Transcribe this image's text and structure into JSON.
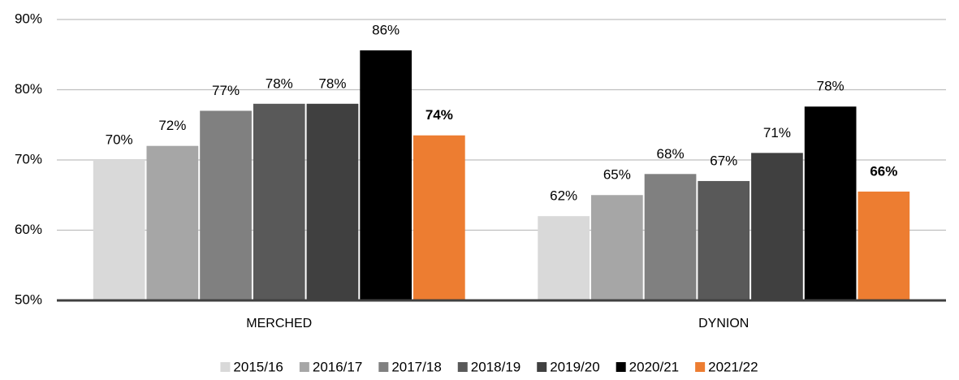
{
  "chart_data": {
    "type": "bar",
    "categories": [
      "MERCHED",
      "DYNION"
    ],
    "series": [
      {
        "name": "2015/16",
        "color": "#d9d9d9",
        "values": [
          70,
          62
        ],
        "value_labels": [
          "70%",
          "62%"
        ]
      },
      {
        "name": "2016/17",
        "color": "#a6a6a6",
        "values": [
          72,
          65
        ],
        "value_labels": [
          "72%",
          "65%"
        ]
      },
      {
        "name": "2017/18",
        "color": "#808080",
        "values": [
          77,
          68
        ],
        "value_labels": [
          "77%",
          "68%"
        ]
      },
      {
        "name": "2018/19",
        "color": "#595959",
        "values": [
          78,
          67
        ],
        "value_labels": [
          "78%",
          "67%"
        ]
      },
      {
        "name": "2019/20",
        "color": "#404040",
        "values": [
          78,
          71
        ],
        "value_labels": [
          "78%",
          "71%"
        ]
      },
      {
        "name": "2020/21",
        "color": "#000000",
        "values": [
          85.6,
          77.6
        ],
        "value_labels": [
          "86%",
          "78%"
        ]
      },
      {
        "name": "2021/22",
        "color": "#ed7d31",
        "values": [
          73.5,
          65.5
        ],
        "value_labels": [
          "74%",
          "66%"
        ],
        "bold_labels": true
      }
    ],
    "ylim": [
      50,
      90
    ],
    "yticks": [
      {
        "value": 50,
        "label": "50%"
      },
      {
        "value": 60,
        "label": "60%"
      },
      {
        "value": 70,
        "label": "70%"
      },
      {
        "value": 80,
        "label": "80%"
      },
      {
        "value": 90,
        "label": "90%"
      }
    ],
    "grid": true,
    "legend": "bottom"
  }
}
